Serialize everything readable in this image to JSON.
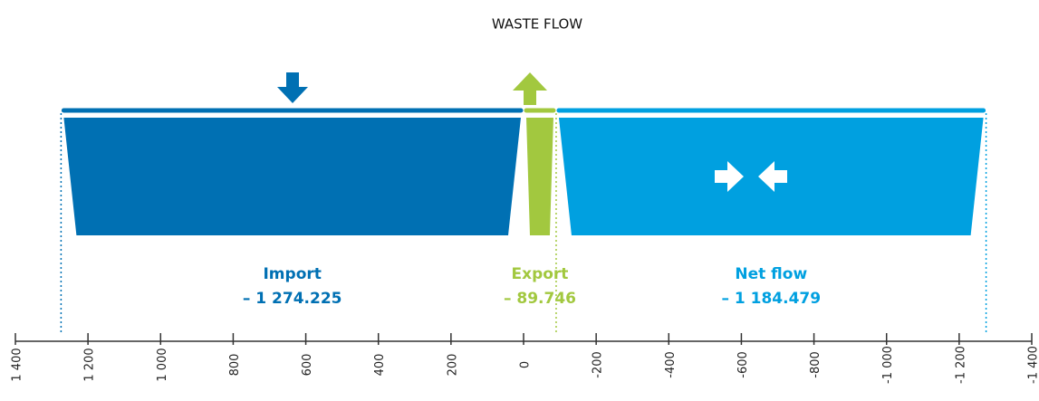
{
  "chart_data": {
    "type": "flow",
    "title": "WASTE FLOW",
    "series": [
      {
        "name": "Import",
        "color": "#0070b3",
        "values": [
          1274.225
        ],
        "value_labels": [
          "– 1 274.225"
        ]
      },
      {
        "name": "Export",
        "color": "#a2c83f",
        "values": [
          89.746
        ],
        "value_labels": [
          "– 89.746"
        ]
      },
      {
        "name": "Net flow",
        "color": "#00a0e0",
        "values": [
          1184.479
        ],
        "value_labels": [
          "– 1 184.479"
        ]
      }
    ],
    "xlim": [
      1400,
      -1400
    ],
    "xticks": [
      {
        "value": 1400,
        "label": "1 400"
      },
      {
        "value": 1200,
        "label": "1 200"
      },
      {
        "value": 1000,
        "label": "1 000"
      },
      800,
      600,
      400,
      200,
      0,
      -200,
      -400,
      -600,
      -800,
      {
        "value": -1000,
        "label": "-1 000"
      },
      {
        "value": -1200,
        "label": "-1 200"
      },
      {
        "value": -1400,
        "label": "-1 400"
      }
    ]
  }
}
